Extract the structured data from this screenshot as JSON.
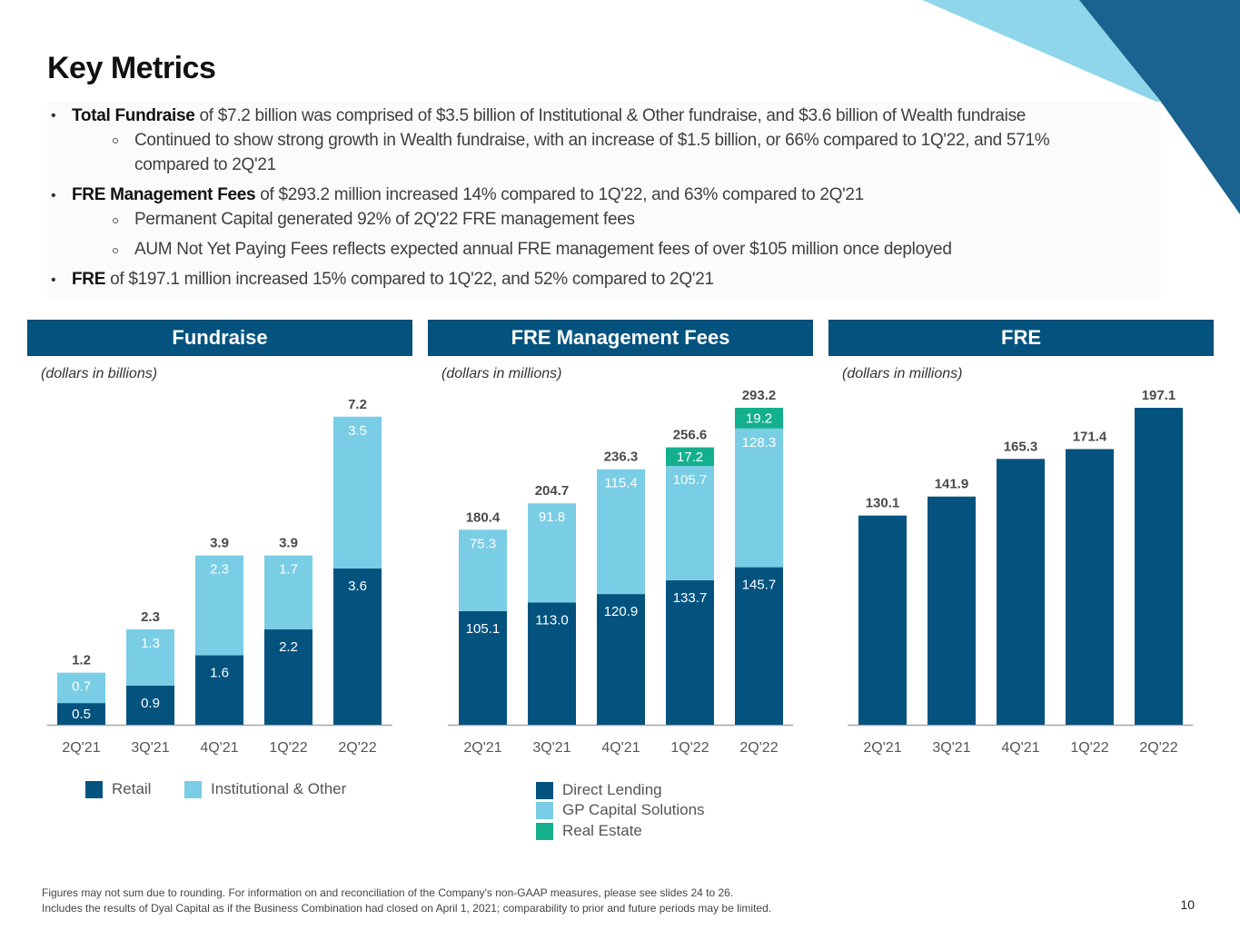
{
  "page": {
    "title": "Key Metrics",
    "page_number": "10",
    "colors": {
      "dark_blue": "#04537f",
      "light_blue": "#79cde5",
      "teal": "#14b08e",
      "header_bg": "#04537f",
      "deco_light": "#8fd6ea",
      "deco_dark": "#1a6391"
    }
  },
  "bullets": [
    {
      "level": 1,
      "bold": "Total Fundraise",
      "text": " of $7.2 billion was comprised of $3.5 billion of Institutional & Other fundraise, and $3.6 billion of Wealth fundraise"
    },
    {
      "level": 2,
      "text": "Continued to show strong growth in Wealth fundraise, with an increase of $1.5 billion, or 66% compared to 1Q'22, and 571%",
      "text_cont": "compared to 2Q'21"
    },
    {
      "level": 1,
      "bold": "FRE Management Fees",
      "text": " of $293.2 million increased 14% compared to 1Q'22, and 63% compared to 2Q'21"
    },
    {
      "level": 2,
      "text": "Permanent Capital generated 92% of 2Q'22 FRE management fees"
    },
    {
      "level": 2,
      "text": "AUM Not Yet Paying Fees reflects expected annual FRE management fees of over $105 million once deployed"
    },
    {
      "level": 1,
      "bold": "FRE",
      "text": " of $197.1 million increased 15% compared to 1Q'22, and 52% compared to 2Q'21"
    }
  ],
  "footnotes": [
    "Figures may not sum due to rounding. For information on and reconciliation of the Company's non-GAAP measures, please see slides 24 to 26.",
    "Includes the results of Dyal Capital as if the Business Combination had closed on April 1, 2021; comparability to prior and future periods may be limited."
  ],
  "chart_data": [
    {
      "type": "bar",
      "stacked": true,
      "title": "Fundraise",
      "subtitle": "(dollars in billions)",
      "categories": [
        "2Q'21",
        "3Q'21",
        "4Q'21",
        "1Q'22",
        "2Q'22"
      ],
      "series": [
        {
          "name": "Retail",
          "color": "#04537f",
          "values": [
            0.5,
            0.9,
            1.6,
            2.2,
            3.6
          ]
        },
        {
          "name": "Institutional & Other",
          "color": "#79cde5",
          "values": [
            0.7,
            1.3,
            2.3,
            1.7,
            3.5
          ]
        }
      ],
      "totals": [
        1.2,
        2.3,
        3.9,
        3.9,
        7.2
      ],
      "labels": {
        "Retail": [
          "0.5",
          "0.9",
          "1.6",
          "2.2",
          "3.6"
        ],
        "Institutional & Other": [
          "0.7",
          "1.3",
          "2.3",
          "1.7",
          "3.5"
        ],
        "totals": [
          "1.2",
          "2.3",
          "3.9",
          "3.9",
          "7.2"
        ]
      },
      "ylim": [
        0,
        7.2
      ],
      "grid": false,
      "legend": "bottom"
    },
    {
      "type": "bar",
      "stacked": true,
      "title": "FRE Management Fees",
      "subtitle": "(dollars in millions)",
      "categories": [
        "2Q'21",
        "3Q'21",
        "4Q'21",
        "1Q'22",
        "2Q'22"
      ],
      "series": [
        {
          "name": "Direct Lending",
          "color": "#04537f",
          "values": [
            105.1,
            113.0,
            120.9,
            133.7,
            145.7
          ]
        },
        {
          "name": "GP Capital Solutions",
          "color": "#79cde5",
          "values": [
            75.3,
            91.8,
            115.4,
            105.7,
            128.3
          ]
        },
        {
          "name": "Real Estate",
          "color": "#14b08e",
          "values": [
            0,
            0,
            0,
            17.2,
            19.2
          ]
        }
      ],
      "totals": [
        180.4,
        204.7,
        236.3,
        256.6,
        293.2
      ],
      "labels": {
        "Direct Lending": [
          "105.1",
          "113.0",
          "120.9",
          "133.7",
          "145.7"
        ],
        "GP Capital Solutions": [
          "75.3",
          "91.8",
          "115.4",
          "105.7",
          "128.3"
        ],
        "Real Estate": [
          "",
          "",
          "",
          "17.2",
          "19.2"
        ],
        "totals": [
          "180.4",
          "204.7",
          "236.3",
          "256.6",
          "293.2"
        ]
      },
      "ylim": [
        0,
        293.2
      ],
      "grid": false,
      "legend": "bottom"
    },
    {
      "type": "bar",
      "stacked": false,
      "title": "FRE",
      "subtitle": "(dollars in millions)",
      "categories": [
        "2Q'21",
        "3Q'21",
        "4Q'21",
        "1Q'22",
        "2Q'22"
      ],
      "series": [
        {
          "name": "FRE",
          "color": "#04537f",
          "values": [
            130.1,
            141.9,
            165.3,
            171.4,
            197.1
          ]
        }
      ],
      "totals": [
        130.1,
        141.9,
        165.3,
        171.4,
        197.1
      ],
      "labels": {
        "totals": [
          "130.1",
          "141.9",
          "165.3",
          "171.4",
          "197.1"
        ]
      },
      "ylim": [
        0,
        197.1
      ],
      "grid": false,
      "legend": "none"
    }
  ]
}
